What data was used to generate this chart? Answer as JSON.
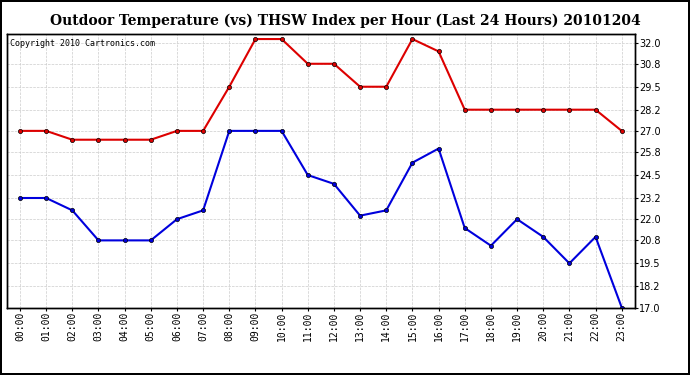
{
  "title": "Outdoor Temperature (vs) THSW Index per Hour (Last 24 Hours) 20101204",
  "copyright": "Copyright 2010 Cartronics.com",
  "hours": [
    "00:00",
    "01:00",
    "02:00",
    "03:00",
    "04:00",
    "05:00",
    "06:00",
    "07:00",
    "08:00",
    "09:00",
    "10:00",
    "11:00",
    "12:00",
    "13:00",
    "14:00",
    "15:00",
    "16:00",
    "17:00",
    "18:00",
    "19:00",
    "20:00",
    "21:00",
    "22:00",
    "23:00"
  ],
  "temp_blue": [
    23.2,
    23.2,
    22.5,
    20.8,
    20.8,
    20.8,
    22.0,
    22.5,
    27.0,
    27.0,
    27.0,
    24.5,
    24.0,
    22.2,
    22.5,
    25.2,
    26.0,
    21.5,
    20.5,
    22.0,
    21.0,
    19.5,
    21.0,
    17.0
  ],
  "thsw_red": [
    27.0,
    27.0,
    26.5,
    26.5,
    26.5,
    26.5,
    27.0,
    27.0,
    29.5,
    32.2,
    32.2,
    30.8,
    30.8,
    29.5,
    29.5,
    32.2,
    31.5,
    28.2,
    28.2,
    28.2,
    28.2,
    28.2,
    28.2,
    27.0
  ],
  "ylim_min": 17.0,
  "ylim_max": 32.5,
  "ytick_vals": [
    17.0,
    18.2,
    19.5,
    20.8,
    22.0,
    23.2,
    24.5,
    25.8,
    27.0,
    28.2,
    29.5,
    30.8,
    32.0
  ],
  "ytick_labels": [
    "17.0",
    "18.2",
    "19.5",
    "20.8",
    "22.0",
    "23.2",
    "24.5",
    "25.8",
    "27.0",
    "28.2",
    "29.5",
    "30.8",
    "32.0"
  ],
  "blue_color": "#0000dd",
  "red_color": "#dd0000",
  "marker_color": "#000000",
  "bg_color": "#ffffff",
  "grid_color": "#cccccc",
  "title_fontsize": 10,
  "copyright_fontsize": 6,
  "tick_fontsize": 7,
  "marker": "o",
  "markersize": 3,
  "linewidth": 1.5
}
